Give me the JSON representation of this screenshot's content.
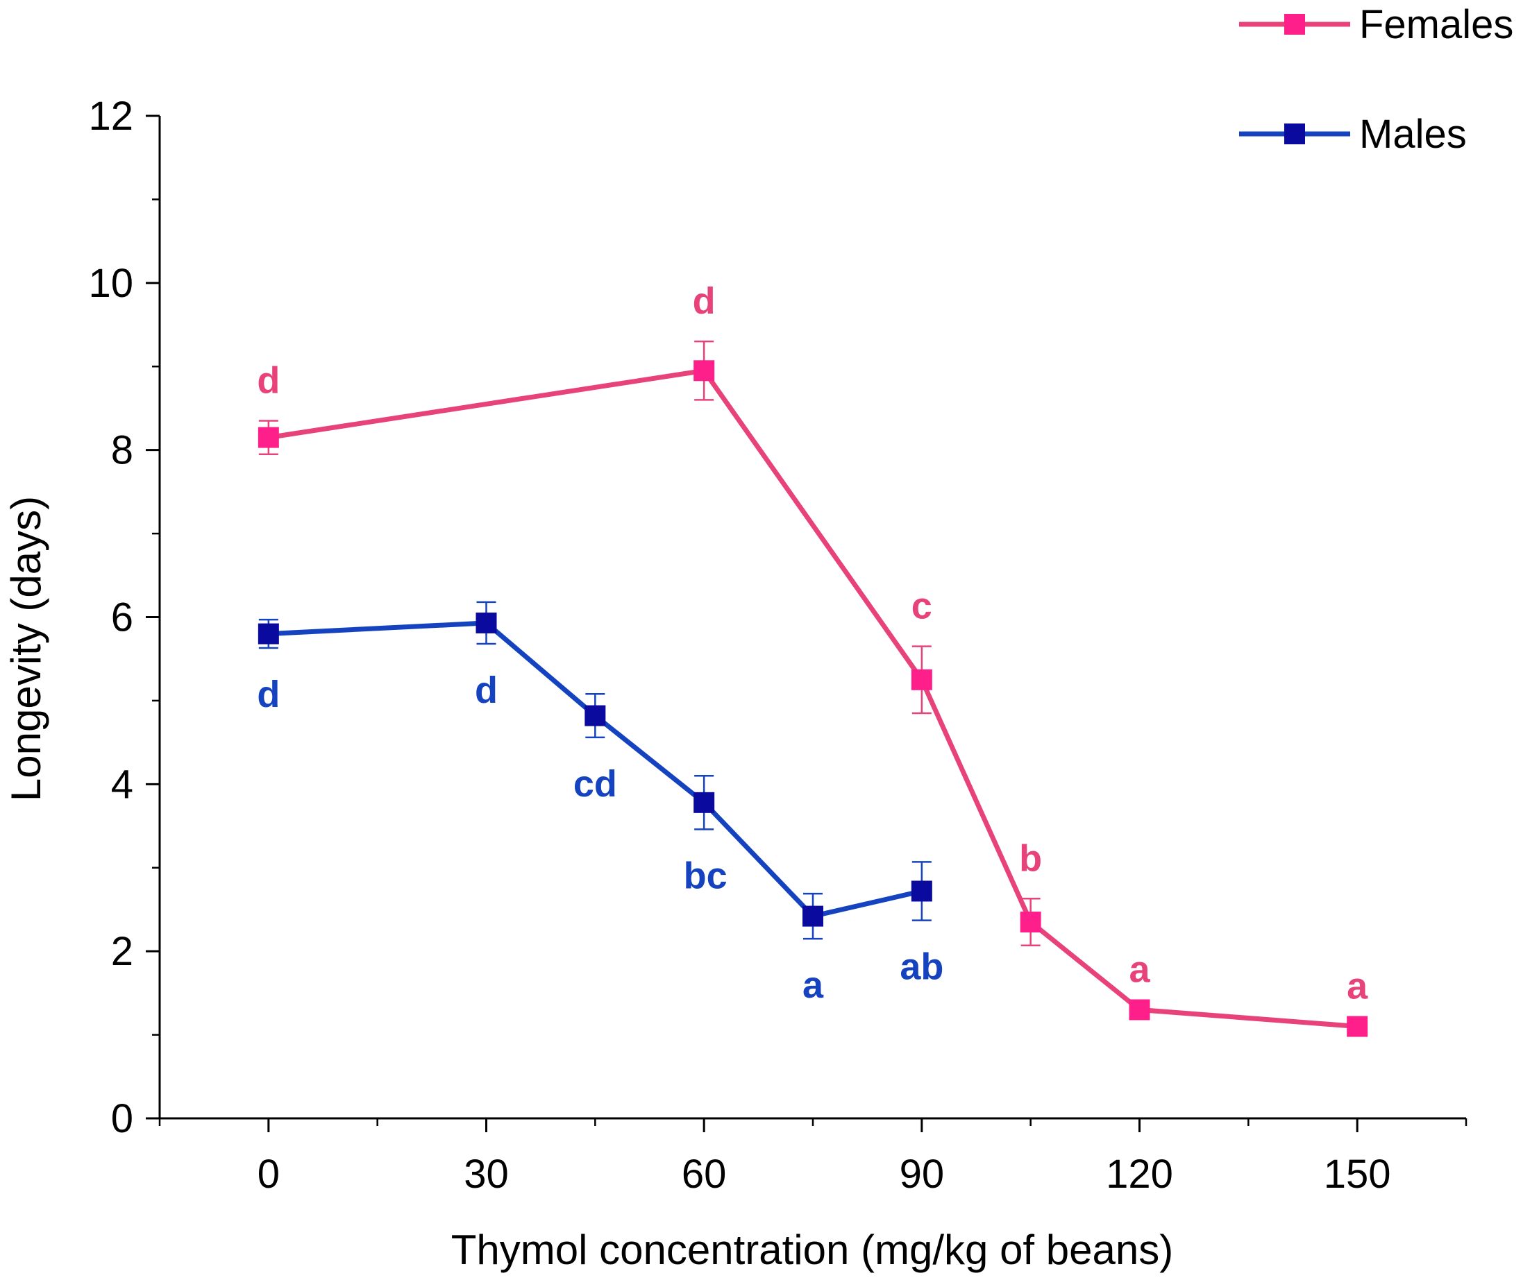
{
  "chart_data": {
    "type": "line",
    "title": "",
    "xlabel": "Thymol concentration (mg/kg of beans)",
    "ylabel": "Longevity (days)",
    "xlim": [
      -15,
      165
    ],
    "ylim": [
      0,
      12
    ],
    "x_ticks": [
      "0",
      "30",
      "60",
      "90",
      "120",
      "150"
    ],
    "y_ticks": [
      "0",
      "2",
      "4",
      "6",
      "8",
      "10",
      "12"
    ],
    "grid": false,
    "legend_position": "top-right",
    "series": [
      {
        "name": "Females",
        "color": "#e8427a",
        "marker_color": "#ff1f8a",
        "x": [
          0,
          60,
          90,
          105,
          120,
          150
        ],
        "y": [
          8.15,
          8.95,
          5.25,
          2.35,
          1.3,
          1.1
        ],
        "error": [
          0.2,
          0.35,
          0.4,
          0.28,
          0.0,
          0.0
        ],
        "labels": [
          "d",
          "d",
          "c",
          "b",
          "a",
          "a"
        ],
        "label_position": "above"
      },
      {
        "name": "Males",
        "color": "#1543c0",
        "marker_color": "#0a0a9e",
        "x": [
          0,
          30,
          45,
          60,
          75,
          90
        ],
        "y": [
          5.8,
          5.93,
          4.82,
          3.78,
          2.42,
          2.72
        ],
        "error": [
          0.17,
          0.25,
          0.26,
          0.32,
          0.27,
          0.35
        ],
        "labels": [
          "d",
          "d",
          "cd",
          "bc",
          "a",
          "ab"
        ],
        "label_position": "below"
      }
    ]
  }
}
